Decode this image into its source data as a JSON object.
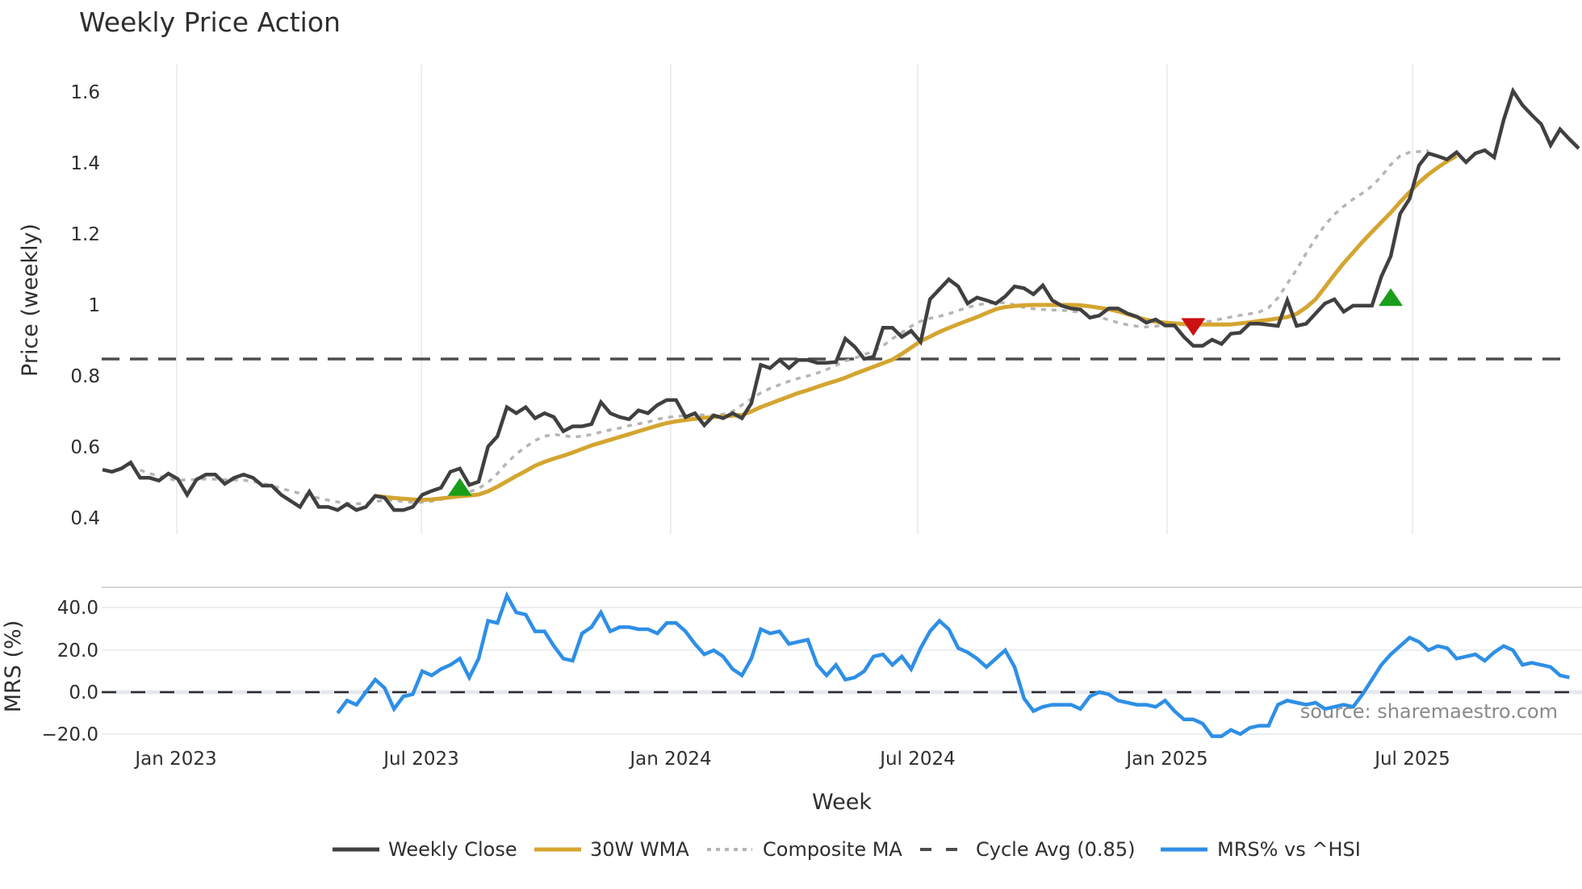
{
  "chart_data": [
    {
      "type": "line",
      "title": "Weekly Price Action",
      "xlabel": "Week",
      "ylabel": "Price (weekly)",
      "ylim": [
        0.37,
        1.68
      ],
      "yticks": [
        "0.4",
        "0.6",
        "0.8",
        "1",
        "1.2",
        "1.4",
        "1.6"
      ],
      "ytick_values": [
        0.4,
        0.6,
        0.8,
        1.0,
        1.2,
        1.4,
        1.6
      ],
      "xticks": [
        "Jan 2023",
        "Jul 2023",
        "Jan 2024",
        "Jul 2024",
        "Jan 2025",
        "Jul 2025"
      ],
      "x_start": "Nov 2022",
      "x_step": "1 week",
      "grid": "vertical only",
      "series": [
        {
          "name": "Weekly Close",
          "color": "#404040",
          "start_index": 0,
          "values": [
            0.536,
            0.53,
            0.539,
            0.556,
            0.513,
            0.513,
            0.505,
            0.525,
            0.51,
            0.465,
            0.508,
            0.522,
            0.522,
            0.496,
            0.513,
            0.522,
            0.513,
            0.491,
            0.491,
            0.465,
            0.448,
            0.431,
            0.474,
            0.431,
            0.431,
            0.422,
            0.439,
            0.422,
            0.431,
            0.462,
            0.457,
            0.422,
            0.422,
            0.431,
            0.465,
            0.476,
            0.485,
            0.53,
            0.539,
            0.493,
            0.502,
            0.601,
            0.63,
            0.712,
            0.695,
            0.712,
            0.681,
            0.695,
            0.684,
            0.644,
            0.658,
            0.658,
            0.664,
            0.726,
            0.695,
            0.684,
            0.678,
            0.703,
            0.695,
            0.718,
            0.732,
            0.732,
            0.684,
            0.695,
            0.661,
            0.689,
            0.681,
            0.695,
            0.681,
            0.723,
            0.831,
            0.822,
            0.845,
            0.822,
            0.845,
            0.845,
            0.837,
            0.837,
            0.839,
            0.905,
            0.882,
            0.848,
            0.854,
            0.936,
            0.936,
            0.91,
            0.927,
            0.896,
            1.016,
            1.044,
            1.072,
            1.052,
            1.004,
            1.021,
            1.013,
            1.004,
            1.024,
            1.052,
            1.047,
            1.03,
            1.055,
            1.013,
            0.998,
            0.99,
            0.987,
            0.964,
            0.97,
            0.99,
            0.99,
            0.976,
            0.967,
            0.95,
            0.959,
            0.942,
            0.942,
            0.91,
            0.885,
            0.885,
            0.902,
            0.89,
            0.919,
            0.922,
            0.947,
            0.947,
            0.944,
            0.941,
            1.013,
            0.941,
            0.947,
            0.976,
            1.004,
            1.016,
            0.981,
            0.998,
            0.998,
            0.998,
            1.08,
            1.137,
            1.257,
            1.299,
            1.393,
            1.427,
            1.419,
            1.41,
            1.43,
            1.402,
            1.427,
            1.436,
            1.416,
            1.521,
            1.603,
            1.563,
            1.535,
            1.509,
            1.45,
            1.495,
            1.467,
            1.441
          ]
        },
        {
          "name": "30W WMA",
          "color": "#D4A530",
          "start_index": 29,
          "values": [
            0.462,
            0.459,
            0.456,
            0.454,
            0.452,
            0.451,
            0.452,
            0.455,
            0.458,
            0.461,
            0.463,
            0.466,
            0.475,
            0.488,
            0.503,
            0.518,
            0.532,
            0.547,
            0.558,
            0.567,
            0.575,
            0.584,
            0.594,
            0.604,
            0.612,
            0.62,
            0.628,
            0.636,
            0.644,
            0.652,
            0.66,
            0.667,
            0.672,
            0.676,
            0.679,
            0.682,
            0.684,
            0.686,
            0.688,
            0.69,
            0.7,
            0.712,
            0.722,
            0.732,
            0.742,
            0.752,
            0.76,
            0.769,
            0.778,
            0.786,
            0.795,
            0.806,
            0.816,
            0.826,
            0.836,
            0.846,
            0.862,
            0.88,
            0.898,
            0.911,
            0.924,
            0.935,
            0.946,
            0.956,
            0.966,
            0.977,
            0.988,
            0.994,
            0.997,
            0.999,
            1.0,
            1.0,
            1.0,
            1.0,
            1.0,
            0.999,
            0.996,
            0.992,
            0.988,
            0.982,
            0.974,
            0.966,
            0.958,
            0.953,
            0.95,
            0.948,
            0.946,
            0.945,
            0.945,
            0.945,
            0.945,
            0.945,
            0.948,
            0.951,
            0.955,
            0.958,
            0.962,
            0.966,
            0.975,
            0.993,
            1.016,
            1.05,
            1.085,
            1.118,
            1.148,
            1.178,
            1.206,
            1.233,
            1.26,
            1.29,
            1.318,
            1.345,
            1.368,
            1.387,
            1.405,
            1.42
          ]
        },
        {
          "name": "Composite MA",
          "color": "#B5B5B5",
          "start_index": 4,
          "values": [
            0.535,
            0.525,
            0.518,
            0.511,
            0.505,
            0.508,
            0.508,
            0.51,
            0.509,
            0.508,
            0.507,
            0.506,
            0.503,
            0.497,
            0.49,
            0.483,
            0.476,
            0.469,
            0.462,
            0.456,
            0.45,
            0.445,
            0.441,
            0.44,
            0.441,
            0.446,
            0.45,
            0.45,
            0.446,
            0.444,
            0.444,
            0.447,
            0.452,
            0.461,
            0.468,
            0.473,
            0.483,
            0.5,
            0.525,
            0.555,
            0.58,
            0.6,
            0.618,
            0.63,
            0.635,
            0.632,
            0.628,
            0.63,
            0.635,
            0.642,
            0.648,
            0.653,
            0.66,
            0.665,
            0.67,
            0.678,
            0.683,
            0.686,
            0.688,
            0.69,
            0.69,
            0.689,
            0.692,
            0.7,
            0.718,
            0.736,
            0.752,
            0.765,
            0.775,
            0.785,
            0.793,
            0.8,
            0.808,
            0.818,
            0.83,
            0.842,
            0.85,
            0.86,
            0.87,
            0.885,
            0.905,
            0.922,
            0.94,
            0.954,
            0.962,
            0.968,
            0.975,
            0.984,
            0.993,
            1.0,
            1.004,
            1.007,
            1.006,
            1.0,
            0.993,
            0.989,
            0.987,
            0.986,
            0.985,
            0.983,
            0.979,
            0.973,
            0.966,
            0.958,
            0.95,
            0.944,
            0.94,
            0.938,
            0.94,
            0.944,
            0.946,
            0.948,
            0.95,
            0.951,
            0.955,
            0.961,
            0.966,
            0.971,
            0.975,
            0.98,
            0.992,
            1.02,
            1.06,
            1.1,
            1.145,
            1.188,
            1.225,
            1.255,
            1.278,
            1.298,
            1.315,
            1.335,
            1.362,
            1.395,
            1.42,
            1.43,
            1.432,
            1.435
          ]
        },
        {
          "name": "Cycle Avg (0.85)",
          "color": "#4d4d4d",
          "constant": 0.85
        }
      ],
      "markers": [
        {
          "type": "buy",
          "shape": "triangle-up",
          "color": "#1a9e1a",
          "index": 38,
          "value": 0.485
        },
        {
          "type": "sell",
          "shape": "triangle-down",
          "color": "#cc1111",
          "index": 116,
          "value": 0.94
        },
        {
          "type": "buy",
          "shape": "triangle-up",
          "color": "#1a9e1a",
          "index": 137,
          "value": 1.02
        }
      ]
    },
    {
      "type": "line",
      "title": "",
      "xlabel": "Week",
      "ylabel": "MRS (%)",
      "ylim": [
        -23,
        52
      ],
      "yticks": [
        "−20.0",
        "0.0",
        "20.0",
        "40.0"
      ],
      "ytick_values": [
        -20,
        0,
        20,
        40
      ],
      "xticks": [
        "Jan 2023",
        "Jul 2023",
        "Jan 2024",
        "Jul 2024",
        "Jan 2025",
        "Jul 2025"
      ],
      "zero_line": 0,
      "series": [
        {
          "name": "MRS% vs ^HSI",
          "color": "#2E8FE6",
          "start_index": 25,
          "values": [
            -10,
            -4,
            -6,
            0,
            6,
            2,
            -8,
            -2,
            -1,
            10,
            8,
            11,
            13,
            16,
            7,
            16,
            34,
            33,
            46,
            38,
            37,
            29,
            29,
            22,
            16,
            15,
            28,
            31,
            38,
            29,
            31,
            31,
            30,
            30,
            28,
            33,
            33,
            29,
            23,
            18,
            20,
            17,
            11,
            8,
            16,
            30,
            28,
            29,
            23,
            24,
            25,
            13,
            8,
            13,
            6,
            7,
            10,
            17,
            18,
            13,
            17,
            11,
            21,
            29,
            34,
            30,
            21,
            19,
            16,
            12,
            16,
            20,
            12,
            -3,
            -9,
            -7,
            -6,
            -6,
            -6,
            -8,
            -2,
            0,
            -1,
            -4,
            -5,
            -6,
            -6,
            -7,
            -4,
            -9,
            -13,
            -13,
            -15,
            -21,
            -21,
            -18,
            -20,
            -17,
            -16,
            -16,
            -6,
            -4,
            -5,
            -6,
            -5,
            -8,
            -7,
            -6,
            -7,
            -1,
            6,
            13,
            18,
            22,
            26,
            24,
            20,
            22,
            21,
            16,
            17,
            18,
            15,
            19,
            22,
            20,
            13,
            14,
            13,
            12,
            8,
            7
          ]
        }
      ],
      "annotations": [
        "source: sharemaestro.com"
      ]
    }
  ],
  "header": {
    "title": "Weekly Price Action"
  },
  "axes": {
    "price_ylabel": "Price (weekly)",
    "mrs_ylabel": "MRS (%)",
    "xlabel": "Week",
    "price_ticks": [
      "1.6",
      "1.4",
      "1.2",
      "1",
      "0.8",
      "0.6",
      "0.4"
    ],
    "mrs_ticks": [
      "40.0",
      "20.0",
      "0.0",
      "−20.0"
    ],
    "x_ticks": [
      "Jan 2023",
      "Jul 2023",
      "Jan 2024",
      "Jul 2024",
      "Jan 2025",
      "Jul 2025"
    ]
  },
  "legend": {
    "items": [
      {
        "label": "Weekly Close",
        "color": "#404040",
        "style": "solid"
      },
      {
        "label": "30W WMA",
        "color": "#D4A530",
        "style": "solid"
      },
      {
        "label": "Composite MA",
        "color": "#B5B5B5",
        "style": "dotted"
      },
      {
        "label": "Cycle Avg (0.85)",
        "color": "#4d4d4d",
        "style": "dashed"
      },
      {
        "label": "MRS% vs ^HSI",
        "color": "#2E8FE6",
        "style": "solid"
      }
    ]
  },
  "watermark": "source: sharemaestro.com"
}
